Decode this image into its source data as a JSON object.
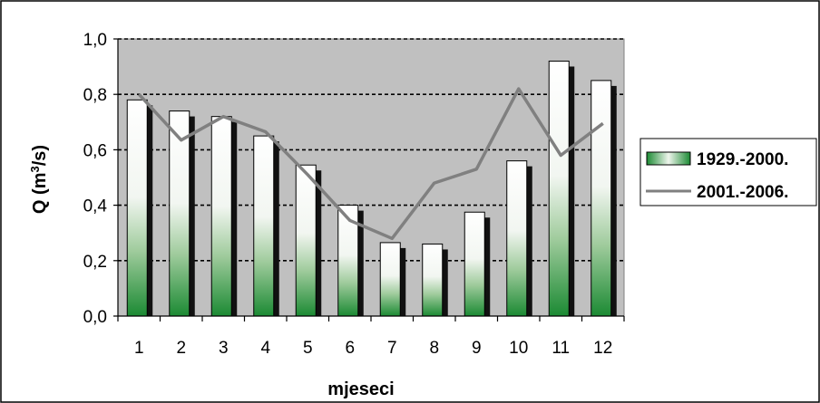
{
  "chart_data": {
    "type": "bar",
    "categories": [
      "1",
      "2",
      "3",
      "4",
      "5",
      "6",
      "7",
      "8",
      "9",
      "10",
      "11",
      "12"
    ],
    "series": [
      {
        "name": "1929.-2000.",
        "type": "bar",
        "values": [
          0.78,
          0.74,
          0.72,
          0.65,
          0.545,
          0.4,
          0.265,
          0.26,
          0.375,
          0.56,
          0.92,
          0.85
        ],
        "color": "#1e8f3a"
      },
      {
        "name": "2001.-2006.",
        "type": "line",
        "values": [
          0.8,
          0.635,
          0.72,
          0.665,
          0.51,
          0.345,
          0.28,
          0.48,
          0.53,
          0.82,
          0.58,
          0.695
        ],
        "color": "#808080"
      }
    ],
    "xlabel": "mjeseci",
    "ylabel": "Q (m³/s)",
    "ylabel_base": "Q (m",
    "ylabel_sup": "3",
    "ylabel_tail": "/s)",
    "ylim": [
      0.0,
      1.0
    ],
    "yticks": [
      "0,0",
      "0,2",
      "0,4",
      "0,6",
      "0,8",
      "1,0"
    ],
    "ytick_values": [
      0.0,
      0.2,
      0.4,
      0.6,
      0.8,
      1.0
    ],
    "grid": true,
    "plot_background": "#c0c0c0",
    "legend_position": "right"
  }
}
